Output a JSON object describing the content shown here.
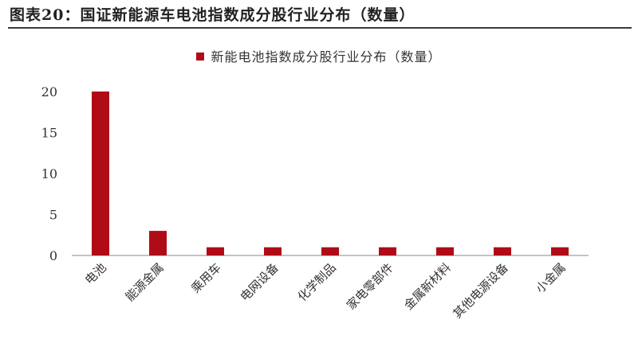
{
  "figure_title": "图表20：国证新能源车电池指数成分股行业分布（数量）",
  "colors": {
    "bar": "#b00c17",
    "axis": "#888888"
  },
  "chart_data": {
    "type": "bar",
    "title": "",
    "xlabel": "",
    "ylabel": "",
    "categories": [
      "电池",
      "能源金属",
      "乘用车",
      "电网设备",
      "化学制品",
      "家电零部件",
      "金属新材料",
      "其他电源设备",
      "小金属"
    ],
    "series": [
      {
        "name": "新能电池指数成分股行业分布（数量）",
        "values": [
          20,
          3,
          1,
          1,
          1,
          1,
          1,
          1,
          1
        ]
      }
    ],
    "ylim": [
      0,
      20
    ],
    "yticks": [
      0,
      5,
      10,
      15,
      20
    ],
    "legend": "top-center",
    "grid": false
  }
}
